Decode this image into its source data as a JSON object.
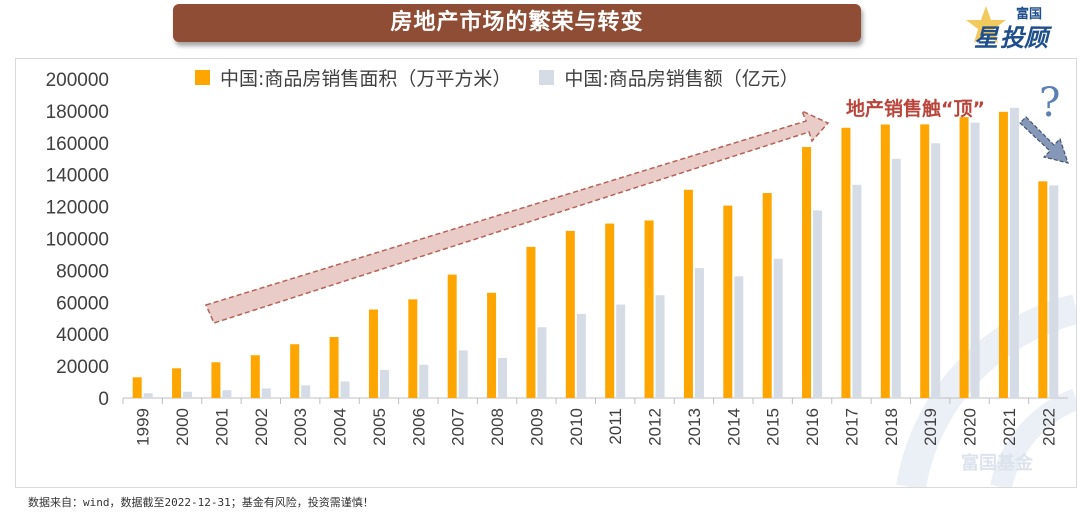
{
  "title": "房地产市场的繁荣与转变",
  "logo": {
    "line1": "富国",
    "line2_a": "星",
    "line2_b": "投顾"
  },
  "watermark": "富国基金",
  "annotation": {
    "peak_label": "地产销售触“顶”",
    "question_mark": "?"
  },
  "source": "数据来自：wind，数据截至2022-12-31；基金有风险，投资需谨慎！",
  "colors": {
    "banner": "#8f4d35",
    "area": "#ffa500",
    "amount": "#d6dce5",
    "arrow": "#e8c9c5",
    "arrow_stroke": "#b15b4d"
  },
  "chart_data": {
    "type": "bar",
    "categories": [
      "1999",
      "2000",
      "2001",
      "2002",
      "2003",
      "2004",
      "2005",
      "2006",
      "2007",
      "2008",
      "2009",
      "2010",
      "2011",
      "2012",
      "2013",
      "2014",
      "2015",
      "2016",
      "2017",
      "2018",
      "2019",
      "2020",
      "2021",
      "2022"
    ],
    "series": [
      {
        "name": "中国:商品房销售面积（万平方米）",
        "values": [
          12998,
          18637,
          22412,
          26808,
          33718,
          38232,
          55486,
          61857,
          77355,
          65969,
          94755,
          104765,
          109366,
          111304,
          130551,
          120649,
          128495,
          157349,
          169408,
          171465,
          171558,
          176086,
          179433,
          135837
        ]
      },
      {
        "name": "中国:商品房销售额（亿元）",
        "values": [
          2988,
          3935,
          4863,
          6032,
          7956,
          10376,
          17576,
          20826,
          29889,
          25068,
          44355,
          52721,
          58589,
          64456,
          81428,
          76292,
          87281,
          117627,
          133701,
          149973,
          159725,
          172613,
          181930,
          133308
        ]
      }
    ],
    "y_ticks": [
      "0",
      "20000",
      "40000",
      "60000",
      "80000",
      "100000",
      "120000",
      "140000",
      "160000",
      "180000",
      "200000"
    ],
    "ylim": [
      0,
      200000
    ],
    "title": "",
    "xlabel": "",
    "ylabel": "",
    "legend_position": "top"
  }
}
